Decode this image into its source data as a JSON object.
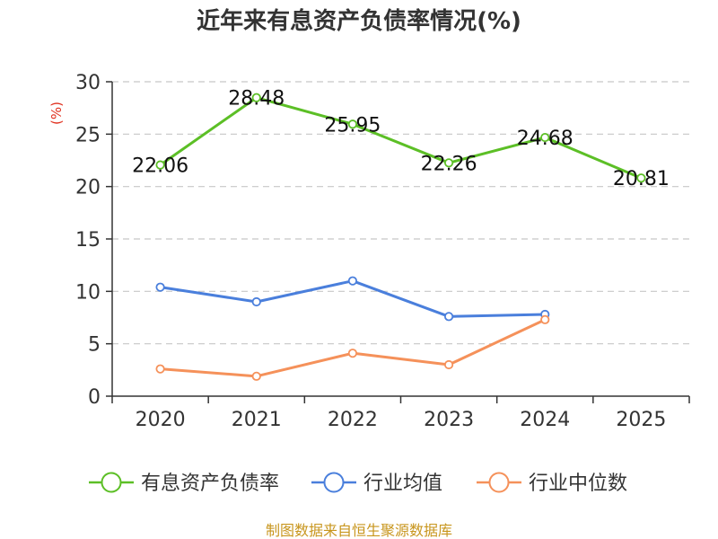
{
  "chart_data": {
    "type": "line",
    "title": "近年来有息资产负债率情况(%)",
    "ylabel": "(%)",
    "xlabel": "",
    "categories": [
      "2020",
      "2021",
      "2022",
      "2023",
      "2024",
      "2025"
    ],
    "ylim": [
      0,
      30
    ],
    "yticks": [
      0,
      5,
      10,
      15,
      20,
      25,
      30
    ],
    "grid": true,
    "legend_position": "bottom",
    "series": [
      {
        "name": "有息资产负债率",
        "color": "#5cbf26",
        "values": [
          22.06,
          28.48,
          25.95,
          22.26,
          24.68,
          20.81
        ],
        "labels": [
          "22.06",
          "28.48",
          "25.95",
          "22.26",
          "24.68",
          "20.81"
        ]
      },
      {
        "name": "行业均值",
        "color": "#4a7fdc",
        "values": [
          10.4,
          9.0,
          11.0,
          7.6,
          7.8,
          null
        ]
      },
      {
        "name": "行业中位数",
        "color": "#f5915a",
        "values": [
          2.6,
          1.9,
          4.1,
          3.0,
          7.3,
          null
        ]
      }
    ],
    "source": "制图数据来自恒生聚源数据库"
  }
}
